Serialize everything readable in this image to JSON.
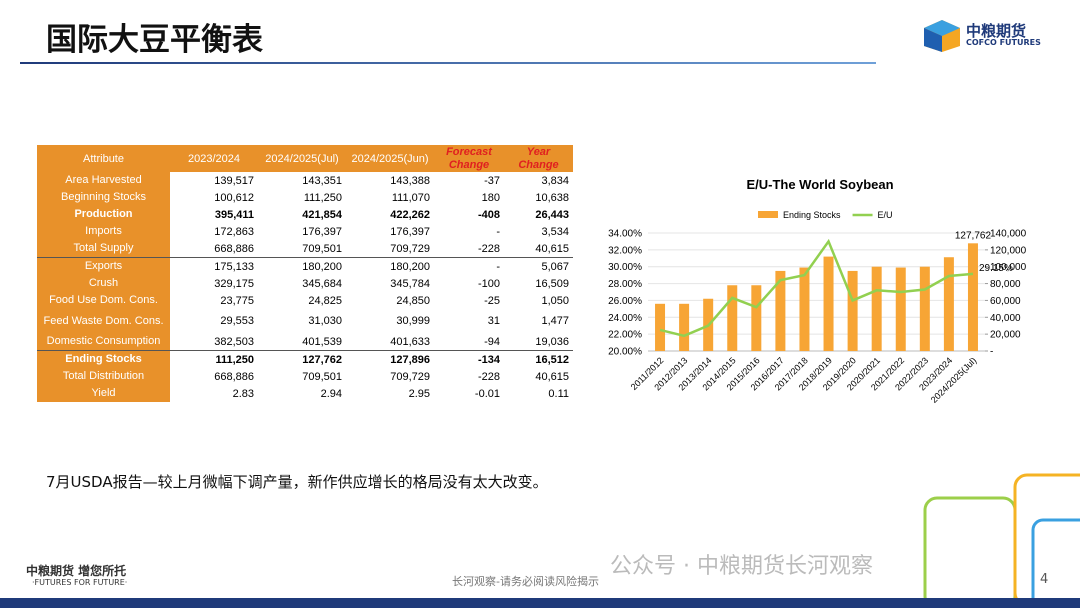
{
  "header": {
    "title": "国际大豆平衡表",
    "logo_cn": "中粮期货",
    "logo_en": "COFCO FUTURES"
  },
  "table": {
    "columns": [
      "Attribute",
      "2023/2024",
      "2024/2025(Jul)",
      "2024/2025(Jun)",
      "Forecast Change",
      "Year Change"
    ],
    "rows": [
      [
        "Area Harvested",
        "139,517",
        "143,351",
        "143,388",
        "-37",
        "3,834"
      ],
      [
        "Beginning Stocks",
        "100,612",
        "111,250",
        "111,070",
        "180",
        "10,638"
      ],
      [
        "Production",
        "395,411",
        "421,854",
        "422,262",
        "-408",
        "26,443"
      ],
      [
        "Imports",
        "172,863",
        "176,397",
        "176,397",
        "-",
        "3,534"
      ],
      [
        "Total Supply",
        "668,886",
        "709,501",
        "709,729",
        "-228",
        "40,615"
      ],
      [
        "Exports",
        "175,133",
        "180,200",
        "180,200",
        "-",
        "5,067"
      ],
      [
        "Crush",
        "329,175",
        "345,684",
        "345,784",
        "-100",
        "16,509"
      ],
      [
        "Food Use Dom. Cons.",
        "23,775",
        "24,825",
        "24,850",
        "-25",
        "1,050"
      ],
      [
        "Feed Waste Dom. Cons.",
        "29,553",
        "31,030",
        "30,999",
        "31",
        "1,477"
      ],
      [
        "Domestic Consumption",
        "382,503",
        "401,539",
        "401,633",
        "-94",
        "19,036"
      ],
      [
        "Ending Stocks",
        "111,250",
        "127,762",
        "127,896",
        "-134",
        "16,512"
      ],
      [
        "Total Distribution",
        "668,886",
        "709,501",
        "709,729",
        "-228",
        "40,615"
      ],
      [
        "Yield",
        "2.83",
        "2.94",
        "2.95",
        "-0.01",
        "0.11"
      ]
    ]
  },
  "chart_data": {
    "type": "combo",
    "title": "E/U-The World Soybean",
    "categories": [
      "2011/2012",
      "2012/2013",
      "2013/2014",
      "2014/2015",
      "2015/2016",
      "2016/2017",
      "2017/2018",
      "2018/2019",
      "2019/2020",
      "2020/2021",
      "2021/2022",
      "2022/2023",
      "2023/2024",
      "2024/2025(Jul)"
    ],
    "series": [
      {
        "name": "Ending Stocks",
        "type": "bar",
        "axis": "y2",
        "color": "#f7a535",
        "values": [
          56000,
          56000,
          62000,
          78000,
          78000,
          95000,
          99000,
          112000,
          95000,
          100000,
          99000,
          100000,
          111250,
          127762
        ],
        "value_labels": [
          null,
          null,
          null,
          null,
          null,
          null,
          null,
          null,
          null,
          null,
          null,
          null,
          null,
          "127,762"
        ]
      },
      {
        "name": "E/U",
        "type": "line",
        "color": "#92d050",
        "values": [
          22.5,
          21.8,
          23.0,
          26.3,
          25.2,
          28.4,
          29.0,
          33.0,
          26.0,
          27.2,
          27.0,
          27.3,
          28.9,
          29.15
        ],
        "value_labels": [
          null,
          null,
          null,
          null,
          null,
          null,
          null,
          null,
          null,
          null,
          null,
          null,
          null,
          "29.15%"
        ]
      }
    ],
    "ylim": [
      20,
      34
    ],
    "yticks": [
      {
        "value": 20,
        "label": "20.00%"
      },
      {
        "value": 22,
        "label": "22.00%"
      },
      {
        "value": 24,
        "label": "24.00%"
      },
      {
        "value": 26,
        "label": "26.00%"
      },
      {
        "value": 28,
        "label": "28.00%"
      },
      {
        "value": 30,
        "label": "30.00%"
      },
      {
        "value": 32,
        "label": "32.00%"
      },
      {
        "value": 34,
        "label": "34.00%"
      }
    ],
    "y2lim": [
      0,
      140000
    ],
    "y2ticks": [
      {
        "value": 0,
        "label": "-"
      },
      {
        "value": 20000,
        "label": "20,000"
      },
      {
        "value": 40000,
        "label": "40,000"
      },
      {
        "value": 60000,
        "label": "60,000"
      },
      {
        "value": 80000,
        "label": "80,000"
      },
      {
        "value": 100000,
        "label": "100,000"
      },
      {
        "value": 120000,
        "label": "120,000"
      },
      {
        "value": 140000,
        "label": "140,000"
      }
    ],
    "legend": "top"
  },
  "caption": "7月USDA报告—较上月微幅下调产量，新作供应增长的格局没有太大改变。",
  "footer": {
    "brand": "中粮期货 增您所托",
    "slogan": "·FUTURES FOR FUTURE·",
    "note": "长河观察-请务必阅读风险揭示",
    "watermark": "公众号 · 中粮期货长河观察",
    "page": "4"
  }
}
